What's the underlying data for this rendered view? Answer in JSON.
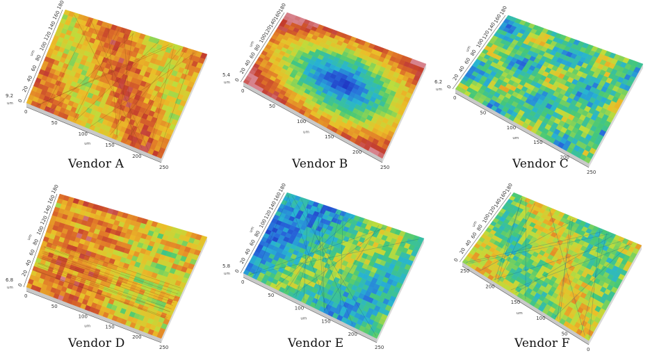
{
  "figure": {
    "panels": [
      {
        "caption": "Vendor A",
        "palette": "warm",
        "z_max": "9.2",
        "z_unit": "um",
        "x_ticks": [
          "0",
          "50",
          "100",
          "150",
          "200",
          "250"
        ],
        "x_unit": "um",
        "y_ticks": [
          "0",
          "20",
          "40",
          "60",
          "80",
          "100",
          "120",
          "140",
          "160",
          "180"
        ],
        "y_unit": "um"
      },
      {
        "caption": "Vendor B",
        "palette": "bowl",
        "z_max": "5.4",
        "z_unit": "um",
        "x_ticks": [
          "0",
          "50",
          "100",
          "150",
          "200",
          "250"
        ],
        "x_unit": "um",
        "y_ticks": [
          "0",
          "20",
          "40",
          "60",
          "80",
          "100",
          "120",
          "140",
          "160",
          "180"
        ],
        "y_unit": "um"
      },
      {
        "caption": "Vendor C",
        "palette": "mixed",
        "z_max": "6.2",
        "z_unit": "um",
        "x_ticks": [
          "0",
          "50",
          "100",
          "150",
          "200",
          "250"
        ],
        "x_unit": "um",
        "y_ticks": [
          "0",
          "20",
          "40",
          "60",
          "80",
          "100",
          "120",
          "140",
          "160",
          "180"
        ],
        "y_unit": "um"
      },
      {
        "caption": "Vendor D",
        "palette": "warm-streaks",
        "z_max": "6.8",
        "z_unit": "um",
        "x_ticks": [
          "0",
          "50",
          "100",
          "150",
          "200",
          "250"
        ],
        "x_unit": "um",
        "y_ticks": [
          "0",
          "20",
          "40",
          "60",
          "80",
          "100",
          "120",
          "140",
          "160",
          "180"
        ],
        "y_unit": "um"
      },
      {
        "caption": "Vendor E",
        "palette": "cool-scratched",
        "z_max": "5.8",
        "z_unit": "um",
        "x_ticks": [
          "0",
          "50",
          "100",
          "150",
          "200",
          "250"
        ],
        "x_unit": "um",
        "y_ticks": [
          "0",
          "20",
          "40",
          "60",
          "80",
          "100",
          "120",
          "140",
          "160",
          "180"
        ],
        "y_unit": "um"
      },
      {
        "caption": "Vendor F",
        "palette": "scratched",
        "z_max": "",
        "z_unit": "um",
        "x_ticks": [
          "250",
          "200",
          "150",
          "100",
          "50",
          "0"
        ],
        "x_unit": "um",
        "y_ticks": [
          "0",
          "20",
          "40",
          "60",
          "80",
          "100",
          "120",
          "140",
          "160",
          "180"
        ],
        "y_unit": "um"
      }
    ]
  }
}
